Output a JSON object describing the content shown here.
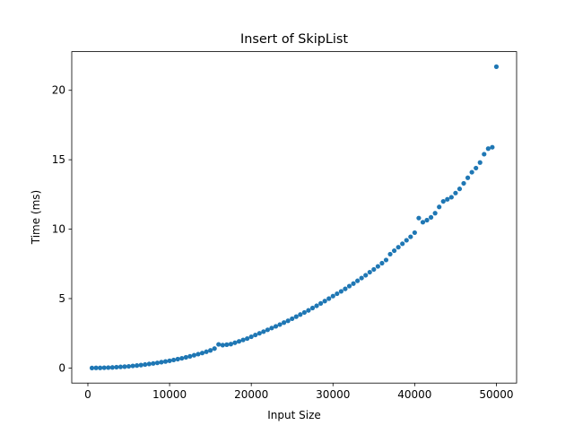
{
  "chart_data": {
    "type": "scatter",
    "title": "Insert of SkipList",
    "x_label": "Input Size",
    "y_label": "Time (ms)",
    "color": "#1f77b4",
    "x": [
      500,
      1000,
      1500,
      2000,
      2500,
      3000,
      3500,
      4000,
      4500,
      5000,
      5500,
      6000,
      6500,
      7000,
      7500,
      8000,
      8500,
      9000,
      9500,
      10000,
      10500,
      11000,
      11500,
      12000,
      12500,
      13000,
      13500,
      14000,
      14500,
      15000,
      15500,
      16000,
      16500,
      17000,
      17500,
      18000,
      18500,
      19000,
      19500,
      20000,
      20500,
      21000,
      21500,
      22000,
      22500,
      23000,
      23500,
      24000,
      24500,
      25000,
      25500,
      26000,
      26500,
      27000,
      27500,
      28000,
      28500,
      29000,
      29500,
      30000,
      30500,
      31000,
      31500,
      32000,
      32500,
      33000,
      33500,
      34000,
      34500,
      35000,
      35500,
      36000,
      36500,
      37000,
      37500,
      38000,
      38500,
      39000,
      39500,
      40000,
      40500,
      41000,
      41500,
      42000,
      42500,
      43000,
      43500,
      44000,
      44500,
      45000,
      45500,
      46000,
      46500,
      47000,
      47500,
      48000,
      48500,
      49000,
      49500,
      50000
    ],
    "values": [
      0,
      0.01,
      0.01,
      0.02,
      0.03,
      0.04,
      0.06,
      0.08,
      0.1,
      0.12,
      0.15,
      0.18,
      0.21,
      0.25,
      0.29,
      0.33,
      0.37,
      0.42,
      0.47,
      0.52,
      0.58,
      0.64,
      0.7,
      0.77,
      0.84,
      0.92,
      1.0,
      1.08,
      1.17,
      1.27,
      1.4,
      1.7,
      1.65,
      1.68,
      1.72,
      1.82,
      1.92,
      2.02,
      2.12,
      2.25,
      2.38,
      2.5,
      2.62,
      2.75,
      2.88,
      3.0,
      3.13,
      3.27,
      3.4,
      3.55,
      3.7,
      3.85,
      4.0,
      4.15,
      4.32,
      4.48,
      4.65,
      4.82,
      5.0,
      5.18,
      5.35,
      5.52,
      5.7,
      5.9,
      6.08,
      6.28,
      6.48,
      6.68,
      6.9,
      7.1,
      7.32,
      7.55,
      7.78,
      8.2,
      8.45,
      8.7,
      8.95,
      9.2,
      9.45,
      9.75,
      10.8,
      10.5,
      10.65,
      10.85,
      11.15,
      11.6,
      12.0,
      12.15,
      12.3,
      12.6,
      12.9,
      13.3,
      13.7,
      14.1,
      14.4,
      14.8,
      15.4,
      15.8,
      15.9,
      21.7
    ],
    "xlim": [
      -1975,
      52475
    ],
    "ylim": [
      -1.085,
      22.785
    ],
    "xticks": [
      0,
      10000,
      20000,
      30000,
      40000,
      50000
    ],
    "yticks": [
      0,
      5,
      10,
      15,
      20
    ]
  }
}
